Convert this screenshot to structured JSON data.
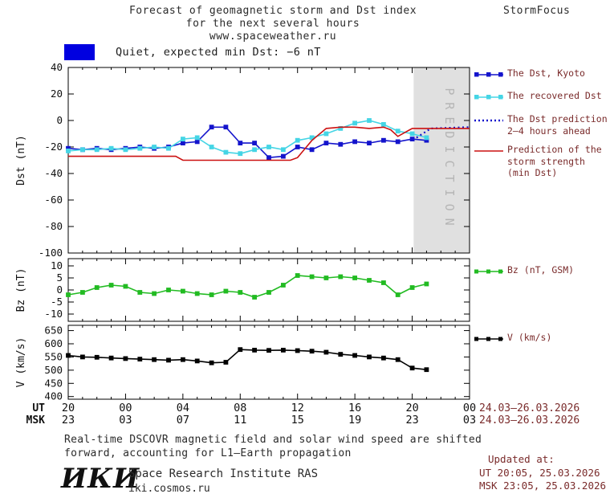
{
  "header": {
    "title_line1": "Forecast of geomagnetic storm and Dst index",
    "title_line2": "for the next several hours",
    "title_line3": "www.spaceweather.ru",
    "brand": "StormFocus"
  },
  "status": {
    "swatch_color": "#0000e0",
    "label": "Quiet, expected min Dst: −6 nT"
  },
  "prediction_region": {
    "label": "P R E D I C T I O N",
    "start_hour": 24.1,
    "end_hour": 28,
    "fill": "#e0e0e0",
    "text_color": "#b5b5b5"
  },
  "axes": {
    "x": {
      "ut_label": "UT",
      "msk_label": "MSK",
      "tick_hours": [
        0,
        4,
        8,
        12,
        16,
        20,
        24,
        28
      ],
      "ut_ticks": [
        "20",
        "00",
        "04",
        "08",
        "12",
        "16",
        "20",
        "00"
      ],
      "msk_ticks": [
        "23",
        "03",
        "07",
        "11",
        "15",
        "19",
        "23",
        "03"
      ],
      "ut_date_range": "24.03–26.03.2026",
      "msk_date_range": "24.03–26.03.2026"
    }
  },
  "legend": {
    "dst_kyoto": "The Dst, Kyoto",
    "recovered": "The recovered Dst",
    "prediction_l1": "The Dst prediction",
    "prediction_l2": "2–4 hours ahead",
    "storm_l1": "Prediction of the",
    "storm_l2": "storm strength",
    "storm_l3": "(min Dst)",
    "bz": "Bz (nT, GSM)",
    "v": "V (km/s)"
  },
  "footer": {
    "note_l1": "Real-time DSCOVR magnetic field and solar wind speed are shifted",
    "note_l2": "forward, accounting for L1–Earth propagation",
    "updated_label": "Updated at:",
    "updated_ut": "UT  20:05, 25.03.2026",
    "updated_msk": "MSK 23:05, 25.03.2026",
    "logo_text": "ИКИ",
    "institute": "Space Research Institute RAS",
    "website": "iki.cosmos.ru"
  },
  "chart_data": [
    {
      "type": "line",
      "panel": "dst",
      "ylabel": "Dst (nT)",
      "ylim": [
        -100,
        40
      ],
      "yticks": [
        40,
        20,
        0,
        -20,
        -40,
        -60,
        -80,
        -100
      ],
      "xlim_hours": [
        0,
        28
      ],
      "x_axis_note": "hours from 20:00 UT 24.03.2026, ticks every 4 h",
      "series": [
        {
          "name": "The Dst, Kyoto",
          "color": "#1414cc",
          "marker": "square",
          "style": "solid",
          "x": [
            0,
            1,
            2,
            3,
            4,
            5,
            6,
            7,
            8,
            9,
            10,
            11,
            12,
            13,
            14,
            15,
            16,
            17,
            18,
            19,
            20,
            21,
            22,
            23,
            24,
            25
          ],
          "y": [
            -21,
            -22,
            -21,
            -22,
            -21,
            -20,
            -21,
            -20,
            -17,
            -16,
            -5,
            -5,
            -17,
            -17,
            -28,
            -27,
            -20,
            -22,
            -17,
            -18,
            -16,
            -17,
            -15,
            -16,
            -14,
            -15
          ]
        },
        {
          "name": "The recovered Dst",
          "color": "#45d5e5",
          "marker": "square",
          "style": "solid",
          "x": [
            0,
            1,
            2,
            3,
            4,
            5,
            6,
            7,
            8,
            9,
            10,
            11,
            12,
            13,
            14,
            15,
            16,
            17,
            18,
            19,
            20,
            21,
            22,
            23,
            24,
            25
          ],
          "y": [
            -23,
            -22,
            -22,
            -21,
            -22,
            -21,
            -20,
            -21,
            -14,
            -13,
            -20,
            -24,
            -25,
            -22,
            -20,
            -22,
            -15,
            -13,
            -10,
            -6,
            -2,
            0,
            -3,
            -8,
            -10,
            -13
          ]
        },
        {
          "name": "The Dst prediction 2–4 hours ahead",
          "color": "#1414cc",
          "marker": "none",
          "style": "dotted",
          "x": [
            24.3,
            25.3,
            28
          ],
          "y": [
            -13,
            -6,
            -5
          ]
        },
        {
          "name": "Prediction of the storm strength (min Dst)",
          "color": "#cc1111",
          "marker": "none",
          "style": "solid",
          "x": [
            0,
            7.5,
            8,
            15.5,
            16,
            17,
            18,
            19,
            20,
            21,
            22,
            22.5,
            23,
            23.5,
            24,
            28
          ],
          "y": [
            -27,
            -27,
            -30,
            -30,
            -28,
            -15,
            -6,
            -5,
            -5,
            -6,
            -5,
            -7,
            -12,
            -9,
            -6,
            -6
          ]
        }
      ]
    },
    {
      "type": "line",
      "panel": "bz",
      "ylabel": "Bz (nT)",
      "ylim": [
        -13,
        13
      ],
      "yticks": [
        10,
        5,
        0,
        -5,
        -10
      ],
      "xlim_hours": [
        0,
        28
      ],
      "series": [
        {
          "name": "Bz (nT, GSM)",
          "color": "#22bb22",
          "marker": "square",
          "style": "solid",
          "x": [
            0,
            1,
            2,
            3,
            4,
            5,
            6,
            7,
            8,
            9,
            10,
            11,
            12,
            13,
            14,
            15,
            16,
            17,
            18,
            19,
            20,
            21,
            22,
            23,
            24,
            25
          ],
          "y": [
            -2,
            -1,
            1,
            2,
            1.5,
            -1,
            -1.5,
            0,
            -0.5,
            -1.5,
            -2,
            -0.5,
            -1,
            -3,
            -1,
            2,
            6,
            5.5,
            5,
            5.5,
            5,
            4,
            3,
            -2,
            1,
            2.5
          ]
        }
      ]
    },
    {
      "type": "line",
      "panel": "v",
      "ylabel": "V (km/s)",
      "ylim": [
        390,
        670
      ],
      "yticks": [
        650,
        600,
        550,
        500,
        450,
        400
      ],
      "xlim_hours": [
        0,
        28
      ],
      "series": [
        {
          "name": "V (km/s)",
          "color": "#000000",
          "marker": "square",
          "style": "solid",
          "x": [
            0,
            1,
            2,
            3,
            4,
            5,
            6,
            7,
            8,
            9,
            10,
            11,
            12,
            13,
            14,
            15,
            16,
            17,
            18,
            19,
            20,
            21,
            22,
            23,
            24,
            25
          ],
          "y": [
            556,
            550,
            549,
            546,
            544,
            542,
            540,
            538,
            540,
            535,
            528,
            530,
            578,
            576,
            575,
            576,
            574,
            572,
            568,
            560,
            556,
            550,
            546,
            540,
            508,
            502
          ]
        }
      ]
    }
  ]
}
